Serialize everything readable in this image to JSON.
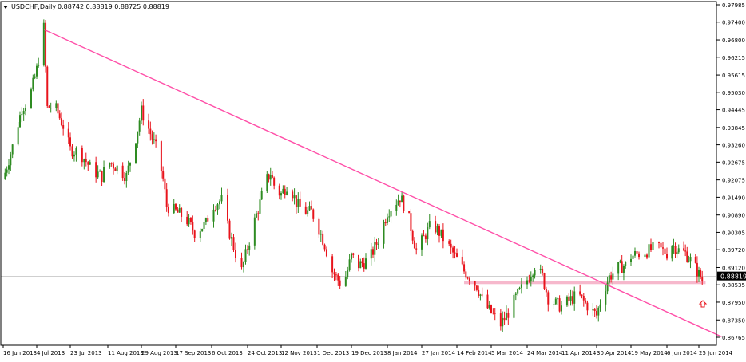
{
  "header": {
    "triangle_icon": "triangle-down-icon",
    "symbol": "USDCHF,Daily",
    "ohlc": "0.88742 0.88819 0.88725 0.88819"
  },
  "colors": {
    "background": "#ffffff",
    "axis": "#000000",
    "bull": "#2e8b22",
    "bear": "#e8141c",
    "trendline": "#ff4fa8",
    "support_band": "#f6b8cc",
    "current_price_line": "#c8c8c8",
    "price_tag_bg": "#000000",
    "price_tag_fg": "#ffffff",
    "arrow": "#e8141c"
  },
  "current_price_label": "0.88819",
  "arrow_icon": "arrow-up-icon",
  "chart_data": {
    "type": "candlestick",
    "symbol": "USDCHF",
    "timeframe": "Daily",
    "y_ticks": [
      "0.97985",
      "0.97400",
      "0.96800",
      "0.96215",
      "0.95615",
      "0.95030",
      "0.94445",
      "0.93845",
      "0.93260",
      "0.92675",
      "0.92075",
      "0.91490",
      "0.90890",
      "0.90305",
      "0.89720",
      "0.89120",
      "0.88535",
      "0.87950",
      "0.87350",
      "0.86765"
    ],
    "ylim": [
      0.865,
      0.98
    ],
    "x_ticks": [
      "16 Jun 2013",
      "4 Jul 2013",
      "23 Jul 2013",
      "11 Aug 2013",
      "29 Aug 2013",
      "17 Sep 2013",
      "6 Oct 2013",
      "24 Oct 2013",
      "12 Nov 2013",
      "1 Dec 2013",
      "19 Dec 2013",
      "8 Jan 2014",
      "27 Jan 2014",
      "14 Feb 2014",
      "5 Mar 2014",
      "24 Mar 2014",
      "11 Apr 2014",
      "30 Apr 2014",
      "19 May 2014",
      "6 Jun 2014",
      "25 Jun 2014"
    ],
    "close_path": [
      [
        "16 Jun 2013",
        0.921
      ],
      [
        "21 Jun 2013",
        0.932
      ],
      [
        "26 Jun 2013",
        0.945
      ],
      [
        "30 Jun 2013",
        0.948
      ],
      [
        "4 Jul 2013",
        0.958
      ],
      [
        "8 Jul 2013",
        0.972
      ],
      [
        "10 Jul 2013",
        0.945
      ],
      [
        "14 Jul 2013",
        0.946
      ],
      [
        "19 Jul 2013",
        0.939
      ],
      [
        "23 Jul 2013",
        0.931
      ],
      [
        "28 Jul 2013",
        0.93
      ],
      [
        "3 Aug 2013",
        0.924
      ],
      [
        "8 Aug 2013",
        0.922
      ],
      [
        "11 Aug 2013",
        0.927
      ],
      [
        "16 Aug 2013",
        0.925
      ],
      [
        "21 Aug 2013",
        0.922
      ],
      [
        "26 Aug 2013",
        0.935
      ],
      [
        "29 Aug 2013",
        0.944
      ],
      [
        "2 Sep 2013",
        0.938
      ],
      [
        "7 Sep 2013",
        0.93
      ],
      [
        "10 Sep 2013",
        0.921
      ],
      [
        "12 Sep 2013",
        0.912
      ],
      [
        "17 Sep 2013",
        0.91
      ],
      [
        "22 Sep 2013",
        0.908
      ],
      [
        "27 Sep 2013",
        0.903
      ],
      [
        "3 Oct 2013",
        0.906
      ],
      [
        "6 Oct 2013",
        0.912
      ],
      [
        "11 Oct 2013",
        0.914
      ],
      [
        "14 Oct 2013",
        0.905
      ],
      [
        "18 Oct 2013",
        0.896
      ],
      [
        "21 Oct 2013",
        0.89
      ],
      [
        "24 Oct 2013",
        0.898
      ],
      [
        "27 Oct 2013",
        0.905
      ],
      [
        "31 Oct 2013",
        0.913
      ],
      [
        "3 Nov 2013",
        0.92
      ],
      [
        "6 Nov 2013",
        0.923
      ],
      [
        "9 Nov 2013",
        0.917
      ],
      [
        "12 Nov 2013",
        0.916
      ],
      [
        "16 Nov 2013",
        0.92
      ],
      [
        "20 Nov 2013",
        0.913
      ],
      [
        "24 Nov 2013",
        0.91
      ],
      [
        "28 Nov 2013",
        0.91
      ],
      [
        "1 Dec 2013",
        0.906
      ],
      [
        "5 Dec 2013",
        0.899
      ],
      [
        "9 Dec 2013",
        0.89
      ],
      [
        "13 Dec 2013",
        0.886
      ],
      [
        "16 Dec 2013",
        0.888
      ],
      [
        "19 Dec 2013",
        0.895
      ],
      [
        "23 Dec 2013",
        0.892
      ],
      [
        "29 Dec 2013",
        0.894
      ],
      [
        "4 Jan 2014",
        0.902
      ],
      [
        "8 Jan 2014",
        0.91
      ],
      [
        "11 Jan 2014",
        0.912
      ],
      [
        "15 Jan 2014",
        0.915
      ],
      [
        "19 Jan 2014",
        0.91
      ],
      [
        "22 Jan 2014",
        0.902
      ],
      [
        "24 Jan 2014",
        0.897
      ],
      [
        "27 Jan 2014",
        0.9
      ],
      [
        "1 Feb 2014",
        0.906
      ],
      [
        "5 Feb 2014",
        0.903
      ],
      [
        "10 Feb 2014",
        0.898
      ],
      [
        "14 Feb 2014",
        0.894
      ],
      [
        "18 Feb 2014",
        0.89
      ],
      [
        "21 Feb 2014",
        0.888
      ],
      [
        "25 Feb 2014",
        0.885
      ],
      [
        "1 Mar 2014",
        0.879
      ],
      [
        "5 Mar 2014",
        0.876
      ],
      [
        "10 Mar 2014",
        0.872
      ],
      [
        "14 Mar 2014",
        0.876
      ],
      [
        "18 Mar 2014",
        0.881
      ],
      [
        "21 Mar 2014",
        0.884
      ],
      [
        "24 Mar 2014",
        0.887
      ],
      [
        "28 Mar 2014",
        0.892
      ],
      [
        "1 Apr 2014",
        0.888
      ],
      [
        "4 Apr 2014",
        0.881
      ],
      [
        "8 Apr 2014",
        0.879
      ],
      [
        "11 Apr 2014",
        0.878
      ],
      [
        "15 Apr 2014",
        0.88
      ],
      [
        "20 Apr 2014",
        0.882
      ],
      [
        "24 Apr 2014",
        0.879
      ],
      [
        "27 Apr 2014",
        0.877
      ],
      [
        "30 Apr 2014",
        0.875
      ],
      [
        "3 May 2014",
        0.882
      ],
      [
        "7 May 2014",
        0.888
      ],
      [
        "12 May 2014",
        0.891
      ],
      [
        "16 May 2014",
        0.892
      ],
      [
        "19 May 2014",
        0.895
      ],
      [
        "23 May 2014",
        0.896
      ],
      [
        "28 May 2014",
        0.897
      ],
      [
        "1 Jun 2014",
        0.898
      ],
      [
        "6 Jun 2014",
        0.896
      ],
      [
        "9 Jun 2014",
        0.899
      ],
      [
        "13 Jun 2014",
        0.897
      ],
      [
        "17 Jun 2014",
        0.896
      ],
      [
        "21 Jun 2014",
        0.893
      ],
      [
        "25 Jun 2014",
        0.889
      ],
      [
        "27 Jun 2014",
        0.887
      ],
      [
        "29 Jun 2014",
        0.8882
      ]
    ],
    "trendline": [
      [
        "8 Jul 2013",
        0.9715
      ],
      [
        "29 Jun 2014",
        0.87
      ]
    ],
    "support_zone": {
      "from": "18 Feb 2014",
      "to": "29 Jun 2014",
      "low": 0.8856,
      "high": 0.8866
    },
    "current_price": 0.88819
  }
}
